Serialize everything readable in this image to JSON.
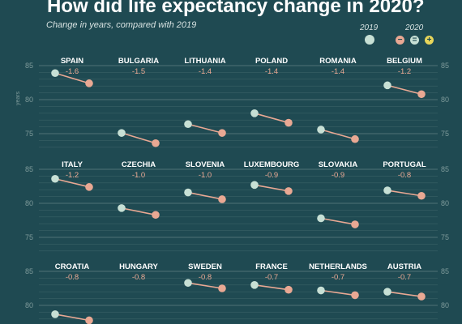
{
  "title": "How did life expectancy change in 2020?",
  "subtitle": "Change in years, compared with 2019",
  "legend": {
    "year_2019": "2019",
    "year_2020": "2020",
    "color_2019": "#c7e0d5",
    "color_decrease": "#e9a893",
    "color_same": "#c7e0d5",
    "color_increase": "#e8d65a",
    "sym_decrease": "−",
    "sym_same": "=",
    "sym_increase": "+"
  },
  "chart_data": {
    "type": "slope",
    "title": "How did life expectancy change in 2020?",
    "subtitle": "Change in years, compared with 2019",
    "ylabel": "years",
    "ylim": [
      72,
      85
    ],
    "yticks": [
      75,
      80,
      85
    ],
    "x": [
      "2019",
      "2020"
    ],
    "panels": [
      {
        "country": "SPAIN",
        "change": "-1.6",
        "v2019": 83.9,
        "v2020": 82.4
      },
      {
        "country": "BULGARIA",
        "change": "-1.5",
        "v2019": 75.1,
        "v2020": 73.6
      },
      {
        "country": "LITHUANIA",
        "change": "-1.4",
        "v2019": 76.4,
        "v2020": 75.1
      },
      {
        "country": "POLAND",
        "change": "-1.4",
        "v2019": 78.0,
        "v2020": 76.6
      },
      {
        "country": "ROMANIA",
        "change": "-1.4",
        "v2019": 75.6,
        "v2020": 74.2
      },
      {
        "country": "BELGIUM",
        "change": "-1.2",
        "v2019": 82.1,
        "v2020": 80.8
      },
      {
        "country": "ITALY",
        "change": "-1.2",
        "v2019": 83.6,
        "v2020": 82.4
      },
      {
        "country": "CZECHIA",
        "change": "-1.0",
        "v2019": 79.3,
        "v2020": 78.3
      },
      {
        "country": "SLOVENIA",
        "change": "-1.0",
        "v2019": 81.6,
        "v2020": 80.6
      },
      {
        "country": "LUXEMBOURG",
        "change": "-0.9",
        "v2019": 82.7,
        "v2020": 81.8
      },
      {
        "country": "SLOVAKIA",
        "change": "-0.9",
        "v2019": 77.8,
        "v2020": 76.9
      },
      {
        "country": "PORTUGAL",
        "change": "-0.8",
        "v2019": 81.9,
        "v2020": 81.1
      },
      {
        "country": "CROATIA",
        "change": "-0.8",
        "v2019": 78.7,
        "v2020": 77.8
      },
      {
        "country": "HUNGARY",
        "change": "-0.8",
        "v2019": 76.5,
        "v2020": 75.7
      },
      {
        "country": "SWEDEN",
        "change": "-0.8",
        "v2019": 83.3,
        "v2020": 82.5
      },
      {
        "country": "FRANCE",
        "change": "-0.7",
        "v2019": 83.0,
        "v2020": 82.3
      },
      {
        "country": "NETHERLANDS",
        "change": "-0.7",
        "v2019": 82.2,
        "v2020": 81.5
      },
      {
        "country": "AUSTRIA",
        "change": "-0.7",
        "v2019": 82.0,
        "v2020": 81.3
      }
    ]
  }
}
